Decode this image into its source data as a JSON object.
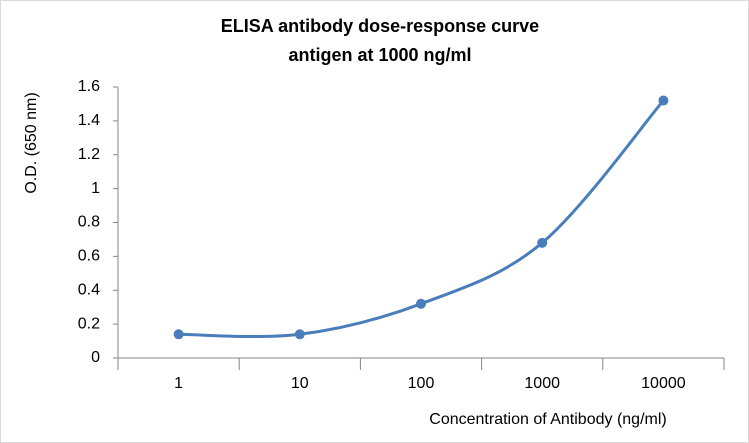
{
  "chart_data": {
    "type": "line",
    "title": "ELISA antibody dose-response curve",
    "subtitle": "antigen at 1000 ng/ml",
    "x_label": "Concentration of Antibody (ng/ml)",
    "y_label": "O.D. (650 nm)",
    "categories": [
      "1",
      "10",
      "100",
      "1000",
      "10000"
    ],
    "series": [
      {
        "name": "O.D.",
        "color": "#4a7ebb",
        "values": [
          0.14,
          0.14,
          0.32,
          0.68,
          1.52
        ]
      }
    ],
    "ylim": [
      0,
      1.6
    ],
    "yticks": [
      0,
      0.2,
      0.4,
      0.6,
      0.8,
      1,
      1.2,
      1.4,
      1.6
    ],
    "grid": false,
    "smooth": true
  }
}
